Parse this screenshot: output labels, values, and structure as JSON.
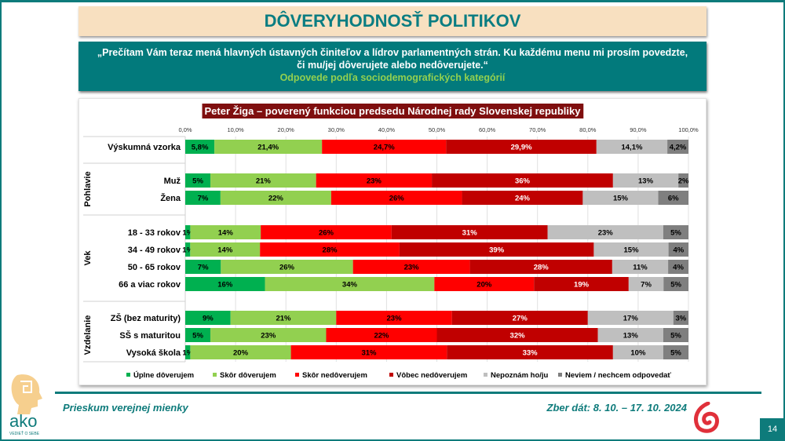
{
  "header": {
    "title": "DÔVERYHODNOSŤ POLITIKOV"
  },
  "question": {
    "text": "„Prečítam Vám teraz mená hlavných ústavných činiteľov a lídrov parlamentných strán. Ku každému menu mi prosím povedzte, či mu/jej dôverujete alebo nedôverujete.“",
    "subtitle": "Odpovede podľa sociodemografických kategórií"
  },
  "footer": {
    "left": "Prieskum verejnej mienky",
    "right": "Zber dát: 8. 10. – 17. 10. 2024",
    "page": "14",
    "logo_text": "ako",
    "logo_tagline": "VEDIEŤ O SEBE"
  },
  "chart_data": {
    "type": "bar",
    "orientation": "horizontal-stacked-100",
    "title": "Peter Žiga – poverený funkciou predsedu Národnej rady Slovenskej republiky",
    "title_bg": "#7f0f0f",
    "xlim": [
      0,
      100
    ],
    "xticks": [
      "0,0%",
      "10,0%",
      "20,0%",
      "30,0%",
      "40,0%",
      "50,0%",
      "60,0%",
      "70,0%",
      "80,0%",
      "90,0%",
      "100,0%"
    ],
    "grid": true,
    "legend_position": "bottom",
    "series": [
      {
        "name": "Úplne dôverujem",
        "color": "#00b050"
      },
      {
        "name": "Skôr dôverujem",
        "color": "#92d050"
      },
      {
        "name": "Skôr nedôverujem",
        "color": "#ff0000"
      },
      {
        "name": "Vôbec nedôverujem",
        "color": "#c00000"
      },
      {
        "name": "Nepoznám ho/ju",
        "color": "#bfbfbf"
      },
      {
        "name": "Neviem / nechcem odpovedať",
        "color": "#7f7f7f"
      }
    ],
    "groups": [
      {
        "name": "",
        "rows": [
          {
            "label": "Výskumná vzorka",
            "values": [
              5.8,
              21.4,
              24.7,
              29.9,
              14.1,
              4.2
            ],
            "labels": [
              "5,8%",
              "21,4%",
              "24,7%",
              "29,9%",
              "14,1%",
              "4,2%"
            ]
          }
        ]
      },
      {
        "name": "Pohlavie",
        "rows": [
          {
            "label": "Muž",
            "values": [
              5,
              21,
              23,
              36,
              13,
              2
            ]
          },
          {
            "label": "Žena",
            "values": [
              7,
              22,
              26,
              24,
              15,
              6
            ]
          }
        ]
      },
      {
        "name": "Vek",
        "rows": [
          {
            "label": "18 - 33 rokov",
            "values": [
              1,
              14,
              26,
              31,
              23,
              5
            ]
          },
          {
            "label": "34 - 49 rokov",
            "values": [
              1,
              14,
              28,
              39,
              15,
              4
            ]
          },
          {
            "label": "50 - 65 rokov",
            "values": [
              7,
              26,
              23,
              28,
              11,
              4
            ]
          },
          {
            "label": "66 a viac rokov",
            "values": [
              16,
              34,
              20,
              19,
              7,
              5
            ]
          }
        ]
      },
      {
        "name": "Vzdelanie",
        "rows": [
          {
            "label": "ZŠ (bez maturity)",
            "values": [
              9,
              21,
              23,
              27,
              17,
              3
            ]
          },
          {
            "label": "SŠ s maturitou",
            "values": [
              5,
              23,
              22,
              32,
              13,
              5
            ]
          },
          {
            "label": "Vysoká škola",
            "values": [
              1,
              20,
              31,
              33,
              10,
              5
            ]
          }
        ]
      }
    ]
  }
}
